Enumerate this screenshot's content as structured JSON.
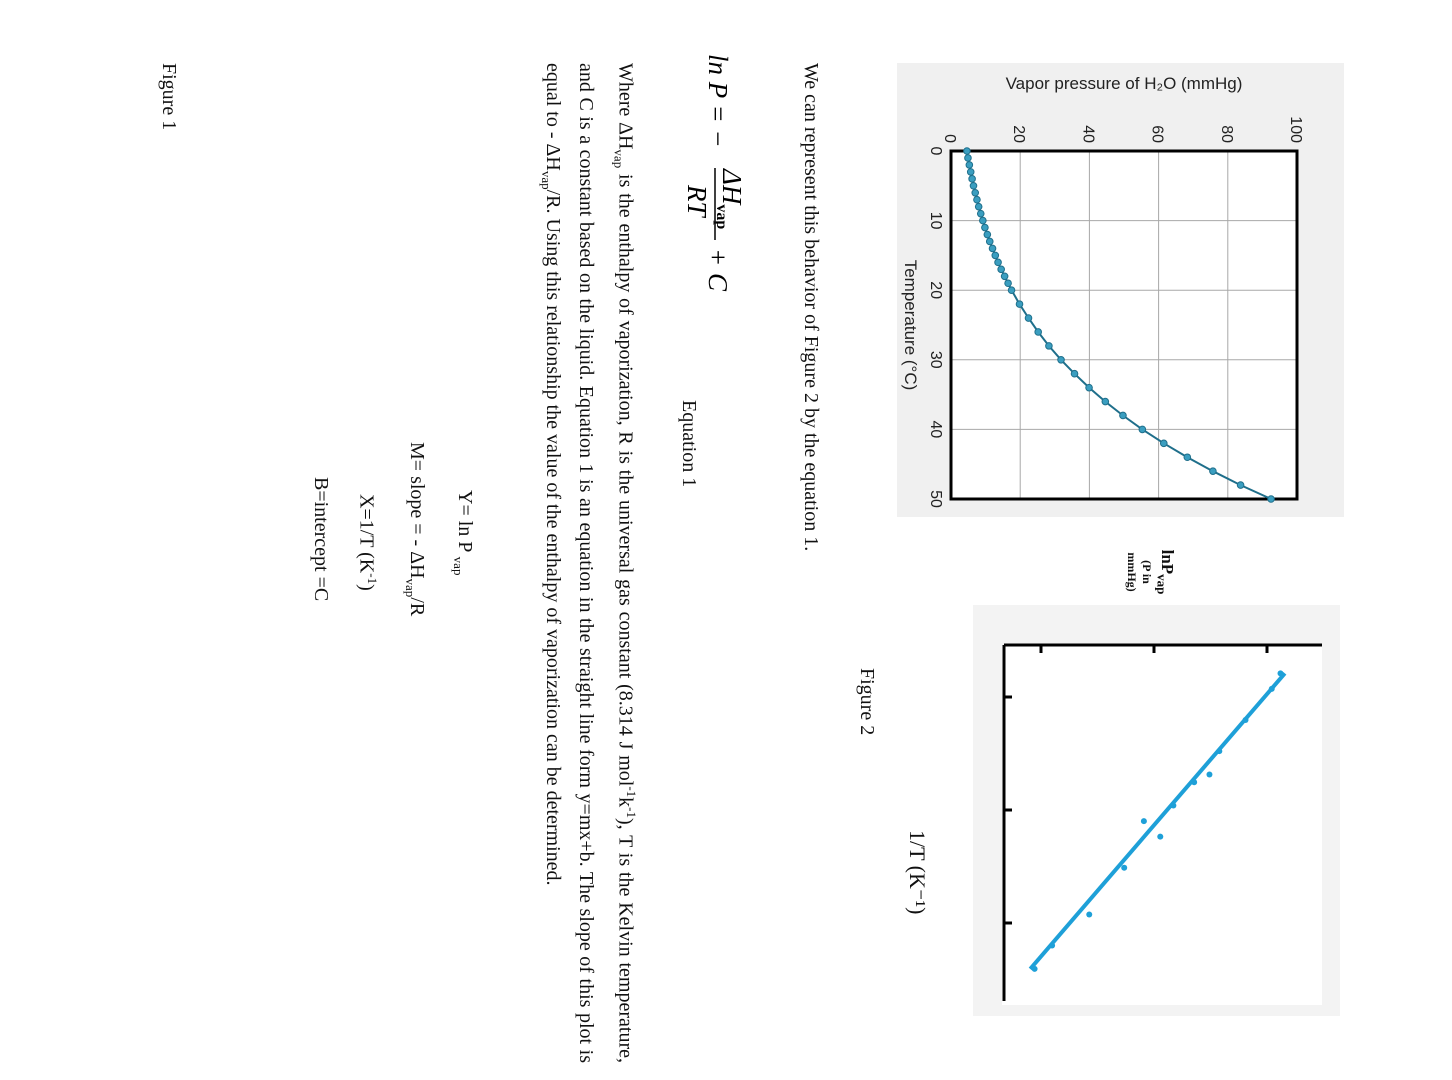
{
  "figure1": {
    "caption": "Figure 1",
    "chart_data": {
      "type": "line",
      "title": "",
      "xlabel": "Temperature  (°C)",
      "ylabel": "Vapor pressure of H₂O  (mmHg)",
      "xlim": [
        0,
        50
      ],
      "ylim": [
        0,
        100
      ],
      "x_ticks": [
        "0",
        "10",
        "20",
        "30",
        "40",
        "50"
      ],
      "y_ticks": [
        "0",
        "20",
        "40",
        "60",
        "80",
        "100"
      ],
      "grid": true,
      "series": [
        {
          "x": [
            0,
            1,
            2,
            3,
            4,
            5,
            6,
            7,
            8,
            9,
            10,
            11,
            12,
            13,
            14,
            15,
            16,
            17,
            18,
            19,
            20,
            22,
            24,
            26,
            28,
            30,
            32,
            34,
            36,
            38,
            40,
            42,
            44,
            46,
            48,
            50
          ],
          "y": [
            4.6,
            4.9,
            5.3,
            5.7,
            6.1,
            6.5,
            7.0,
            7.5,
            8.0,
            8.6,
            9.2,
            9.8,
            10.5,
            11.2,
            12.0,
            12.8,
            13.6,
            14.5,
            15.5,
            16.5,
            17.5,
            19.8,
            22.4,
            25.2,
            28.3,
            31.8,
            35.7,
            39.9,
            44.6,
            49.7,
            55.3,
            61.5,
            68.3,
            75.7,
            83.7,
            92.5
          ]
        }
      ],
      "line_color": "#1f6f8b",
      "marker_color": "#3a9ec0"
    }
  },
  "figure2": {
    "caption": "Figure 2",
    "chart_data": {
      "type": "scatter",
      "title": "",
      "xlabel": "1/T (K⁻¹)",
      "ylabel_main": "lnP",
      "ylabel_sub": "vap",
      "ylabel_note": "(P in mmHg)",
      "grid": false,
      "points": [
        {
          "x": 0.0031,
          "y": 4.53
        },
        {
          "x": 0.00312,
          "y": 4.45
        },
        {
          "x": 0.00316,
          "y": 4.21
        },
        {
          "x": 0.0032,
          "y": 3.97
        },
        {
          "x": 0.00323,
          "y": 3.88
        },
        {
          "x": 0.00324,
          "y": 3.74
        },
        {
          "x": 0.00327,
          "y": 3.55
        },
        {
          "x": 0.00329,
          "y": 3.28
        },
        {
          "x": 0.00331,
          "y": 3.43
        },
        {
          "x": 0.00335,
          "y": 3.1
        },
        {
          "x": 0.00341,
          "y": 2.78
        },
        {
          "x": 0.00345,
          "y": 2.44
        },
        {
          "x": 0.00348,
          "y": 2.28
        }
      ],
      "fit_line": {
        "x": [
          0.0031,
          0.00348
        ],
        "y": [
          4.57,
          2.24
        ]
      },
      "color": "#1ea0d8"
    }
  },
  "intro_text": "We can represent this behavior of Figure 2 by the equation 1.",
  "equation": {
    "lhs": "ln P = −",
    "numerator": "ΔH",
    "numerator_sub": "vap",
    "denominator": "RT",
    "tail": "+ C",
    "label": "Equation 1"
  },
  "paragraph": {
    "p1": "Where ΔH",
    "p1_sub": "vap",
    "p2": " is the enthalpy of vaporization, R is the universal gas constant (8.314 J mol",
    "p2_sup": "-1",
    "p3": "k",
    "p3_sup": "-1",
    "p4": "), T is the Kelvin temperature, and C is a constant based on the liquid. Equation 1 is an equation in the straight line form y=mx+b. The slope of this plot is equal to - ΔH",
    "p4_sub": "vap",
    "p5": "/R. Using this relationship the value of the enthalpy of vaporization can be determined."
  },
  "definitions": {
    "y_main": "Y= ln P ",
    "y_sub": "vap",
    "m_main": "M= slope = - ΔH",
    "m_sub": "vap",
    "m_tail": "/R",
    "x_main": "X=1/T  (K",
    "x_sup": "-1",
    "x_tail": ")",
    "b_main": "B=intercept =C"
  }
}
